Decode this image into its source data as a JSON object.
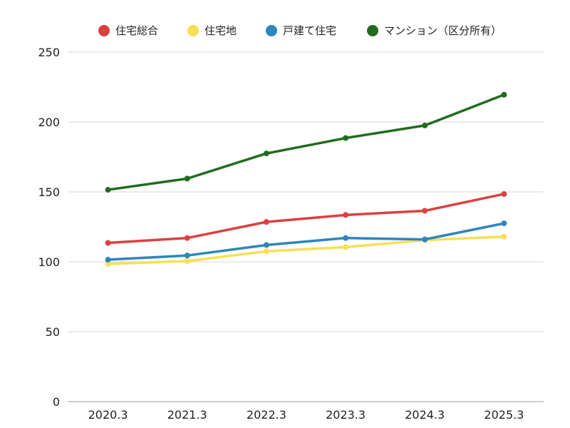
{
  "chart_data": {
    "type": "line",
    "categories": [
      "2020.3",
      "2021.3",
      "2022.3",
      "2023.3",
      "2024.3",
      "2025.3"
    ],
    "ylim": [
      0,
      250
    ],
    "yticks": [
      0,
      50,
      100,
      150,
      200,
      250
    ],
    "grid": true,
    "legend_position": "top-center",
    "series": [
      {
        "name": "住宅総合",
        "color": "#db4040",
        "values": [
          113.5,
          117,
          128.5,
          133.5,
          136.5,
          148.5
        ]
      },
      {
        "name": "住宅地",
        "color": "#f9df53",
        "values": [
          98.5,
          100.5,
          107.5,
          110.5,
          115.5,
          118
        ]
      },
      {
        "name": "戸建て住宅",
        "color": "#2e86bb",
        "values": [
          101.5,
          104.5,
          112,
          117,
          116,
          127.5
        ]
      },
      {
        "name": "マンション（区分所有）",
        "color": "#226b20",
        "values": [
          151.5,
          159.5,
          177.5,
          188.5,
          197.5,
          219.5
        ]
      }
    ]
  }
}
